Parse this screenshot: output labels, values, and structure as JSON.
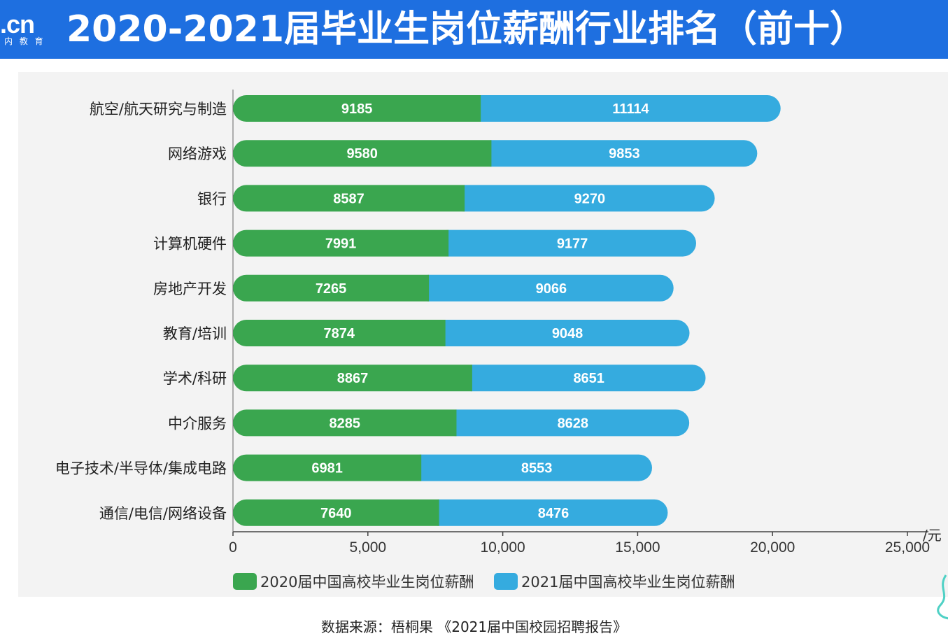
{
  "header": {
    "logo_text": ".cn",
    "logo_sub": "内 教 育",
    "title": "2020-2021届毕业生岗位薪酬行业排名（前十）"
  },
  "colors": {
    "header_bg": "#1e6fe0",
    "series_2020": "#3aa64f",
    "series_2021": "#35abdf",
    "panel_bg": "#f3f3f3"
  },
  "chart_data": {
    "type": "bar",
    "orientation": "horizontal",
    "stacked": true,
    "categories": [
      "航空/航天研究与制造",
      "网络游戏",
      "银行",
      "计算机硬件",
      "房地产开发",
      "教育/培训",
      "学术/科研",
      "中介服务",
      "电子技术/半导体/集成电路",
      "通信/电信/网络设备"
    ],
    "series": [
      {
        "name": "2020届中国高校毕业生岗位薪酬",
        "values": [
          9185,
          9580,
          8587,
          7991,
          7265,
          7874,
          8867,
          8285,
          6981,
          7640
        ]
      },
      {
        "name": "2021届中国高校毕业生岗位薪酬",
        "values": [
          11114,
          9853,
          9270,
          9177,
          9066,
          9048,
          8651,
          8628,
          8553,
          8476
        ]
      }
    ],
    "xlim": [
      0,
      25000
    ],
    "xticks": [
      "0",
      "5,000",
      "10,000",
      "15,000",
      "20,000",
      "25,000"
    ],
    "xtick_values": [
      0,
      5000,
      10000,
      15000,
      20000,
      25000
    ],
    "unit": "/元",
    "legend_position": "bottom"
  },
  "footer": {
    "source": "数据来源：梧桐果 《2021届中国校园招聘报告》"
  }
}
